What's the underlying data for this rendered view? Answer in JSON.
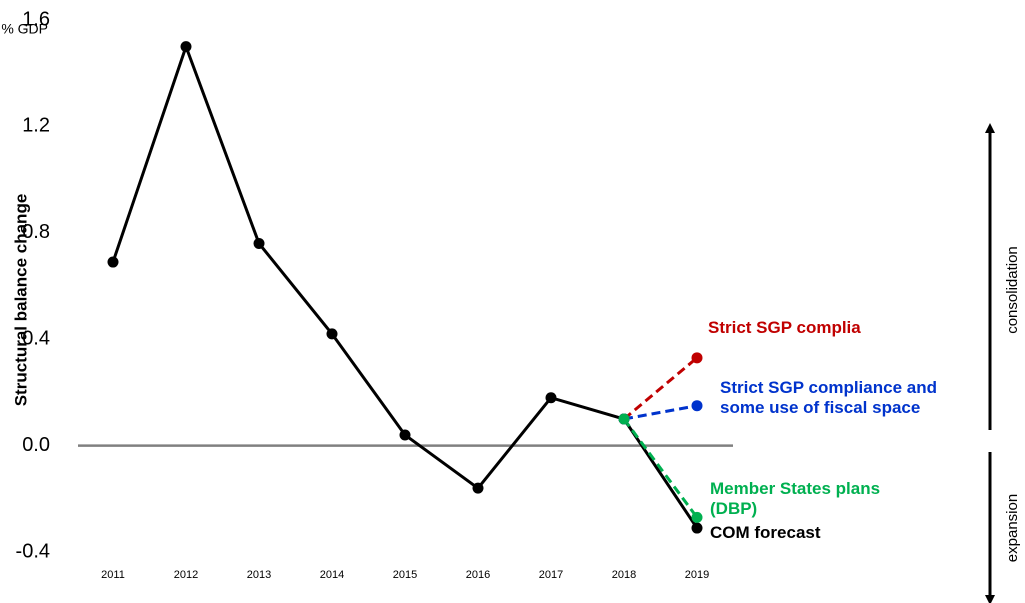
{
  "chart_data": {
    "type": "line",
    "y_label": "Structural balance change",
    "unit": "% GDP",
    "categories": [
      "2011",
      "2012",
      "2013",
      "2014",
      "2015",
      "2016",
      "2017",
      "2018",
      "2019"
    ],
    "series": [
      {
        "name": "COM forecast",
        "color": "#000000",
        "style": "solid",
        "values": [
          0.69,
          1.5,
          0.76,
          0.42,
          0.04,
          -0.16,
          0.18,
          0.1,
          -0.31
        ]
      },
      {
        "name": "Strict SGP complia",
        "color": "#c00000",
        "style": "dashed",
        "values": [
          null,
          null,
          null,
          null,
          null,
          null,
          null,
          0.1,
          0.33
        ]
      },
      {
        "name": "Strict SGP  compliance and some use of fiscal space",
        "color": "#0033cc",
        "style": "dashed",
        "values": [
          null,
          null,
          null,
          null,
          null,
          null,
          null,
          0.1,
          0.15
        ]
      },
      {
        "name": "Member States plans (DBP)",
        "color": "#00b050",
        "style": "dashed",
        "values": [
          null,
          null,
          null,
          null,
          null,
          null,
          null,
          0.1,
          -0.27
        ]
      }
    ],
    "ylim": [
      -0.4,
      1.6
    ],
    "yticks": [
      -0.4,
      {
        "value": 0,
        "label": "0.0"
      },
      0.4,
      0.8,
      1.2,
      1.6
    ],
    "zero_line_color": "#808080",
    "annotations": [
      "consolidation",
      "expansion"
    ]
  }
}
